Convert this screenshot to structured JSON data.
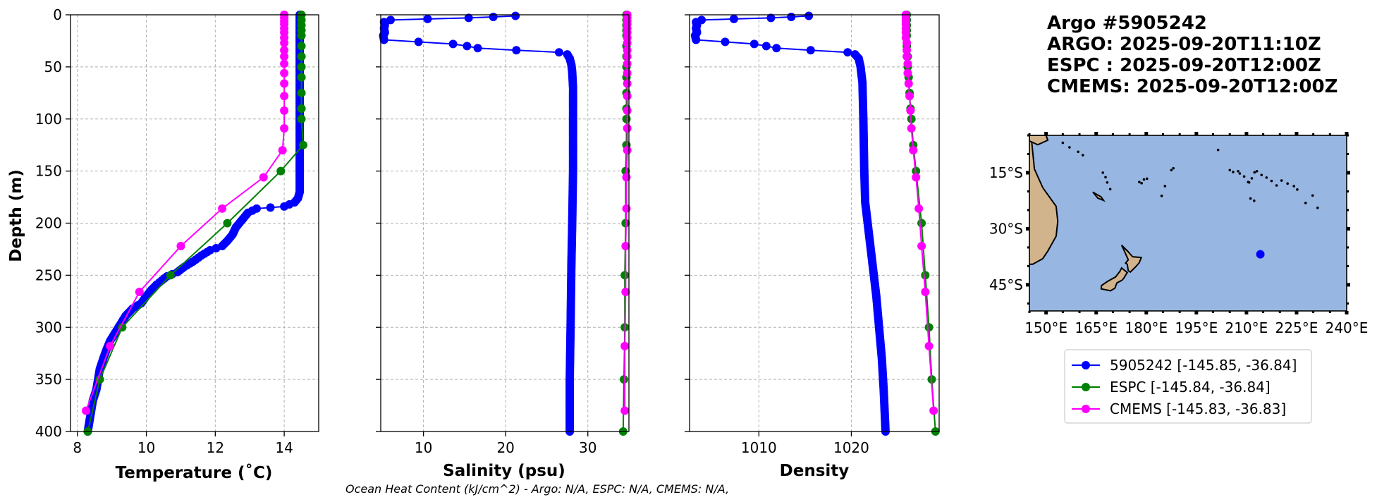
{
  "chart_data": [
    {
      "type": "line",
      "panel": "temperature",
      "xlabel": "Temperature (˚C)",
      "ylabel": "Depth (m)",
      "xlim": [
        7.8,
        15.0
      ],
      "ylim": [
        400,
        0
      ],
      "xticks": [
        8,
        10,
        12,
        14
      ],
      "yticks": [
        0,
        50,
        100,
        150,
        200,
        250,
        300,
        350,
        400
      ],
      "grid": true,
      "series": [
        {
          "name": "5905242",
          "color": "#0000ff",
          "marker": "dense",
          "points": [
            [
              14.45,
              0
            ],
            [
              14.45,
              25
            ],
            [
              14.45,
              50
            ],
            [
              14.45,
              75
            ],
            [
              14.45,
              100
            ],
            [
              14.45,
              125
            ],
            [
              14.45,
              150
            ],
            [
              14.45,
              170
            ],
            [
              14.4,
              176
            ],
            [
              14.3,
              180
            ],
            [
              14.0,
              184
            ],
            [
              13.6,
              185
            ],
            [
              13.2,
              186
            ],
            [
              12.95,
              190
            ],
            [
              12.8,
              196
            ],
            [
              12.6,
              204
            ],
            [
              12.5,
              211
            ],
            [
              12.35,
              217
            ],
            [
              12.2,
              222
            ],
            [
              11.85,
              226
            ],
            [
              11.6,
              231
            ],
            [
              11.35,
              237
            ],
            [
              11.1,
              242
            ],
            [
              10.9,
              247
            ],
            [
              10.6,
              251
            ],
            [
              10.3,
              259
            ],
            [
              10.15,
              264
            ],
            [
              10.0,
              270
            ],
            [
              9.85,
              277
            ],
            [
              9.6,
              282
            ],
            [
              9.4,
              289
            ],
            [
              9.25,
              297
            ],
            [
              9.1,
              305
            ],
            [
              8.95,
              313
            ],
            [
              8.85,
              321
            ],
            [
              8.75,
              330
            ],
            [
              8.65,
              340
            ],
            [
              8.6,
              350
            ],
            [
              8.55,
              360
            ],
            [
              8.45,
              370
            ],
            [
              8.4,
              380
            ],
            [
              8.35,
              390
            ],
            [
              8.3,
              400
            ]
          ]
        },
        {
          "name": "ESPC",
          "color": "#008000",
          "marker": "dot",
          "points": [
            [
              14.5,
              0
            ],
            [
              14.5,
              5
            ],
            [
              14.5,
              10
            ],
            [
              14.5,
              15
            ],
            [
              14.5,
              20
            ],
            [
              14.5,
              30
            ],
            [
              14.5,
              40
            ],
            [
              14.5,
              50
            ],
            [
              14.5,
              60
            ],
            [
              14.5,
              75
            ],
            [
              14.5,
              90
            ],
            [
              14.5,
              100
            ],
            [
              14.55,
              125
            ],
            [
              13.9,
              150
            ],
            [
              12.35,
              200
            ],
            [
              10.7,
              250
            ],
            [
              9.3,
              300
            ],
            [
              8.65,
              350
            ],
            [
              8.3,
              400
            ]
          ]
        },
        {
          "name": "CMEMS",
          "color": "#ff00ff",
          "marker": "dot",
          "points": [
            [
              14.0,
              0
            ],
            [
              14.0,
              3
            ],
            [
              14.0,
              6
            ],
            [
              14.0,
              9
            ],
            [
              14.0,
              13
            ],
            [
              14.0,
              17
            ],
            [
              14.0,
              22
            ],
            [
              14.0,
              27
            ],
            [
              14.0,
              34
            ],
            [
              14.0,
              40
            ],
            [
              14.0,
              47
            ],
            [
              14.0,
              56
            ],
            [
              14.0,
              66
            ],
            [
              14.0,
              78
            ],
            [
              14.0,
              92
            ],
            [
              14.0,
              109
            ],
            [
              13.95,
              130
            ],
            [
              13.4,
              156
            ],
            [
              12.2,
              186
            ],
            [
              11.0,
              222
            ],
            [
              9.8,
              266
            ],
            [
              8.95,
              318
            ],
            [
              8.25,
              380
            ]
          ]
        }
      ]
    },
    {
      "type": "line",
      "panel": "salinity",
      "xlabel": "Salinity (psu)",
      "xlim": [
        4.8,
        35.0
      ],
      "ylim": [
        400,
        0
      ],
      "xticks": [
        10,
        20,
        30
      ],
      "grid": true,
      "series": [
        {
          "name": "5905242",
          "color": "#0000ff",
          "marker": "dense",
          "points": [
            [
              21.2,
              1
            ],
            [
              18.5,
              2
            ],
            [
              15.5,
              3
            ],
            [
              10.5,
              4
            ],
            [
              6.0,
              5
            ],
            [
              5.2,
              7
            ],
            [
              5.3,
              10
            ],
            [
              5.2,
              13
            ],
            [
              5.3,
              17
            ],
            [
              5.1,
              20
            ],
            [
              5.2,
              24
            ],
            [
              13.6,
              28
            ],
            [
              15.3,
              30
            ],
            [
              16.6,
              32
            ],
            [
              21.3,
              34
            ],
            [
              26.5,
              36
            ],
            [
              27.5,
              38
            ],
            [
              27.8,
              42
            ],
            [
              28.0,
              48
            ],
            [
              28.1,
              55
            ],
            [
              28.2,
              70
            ],
            [
              28.2,
              100
            ],
            [
              28.2,
              150
            ],
            [
              28.1,
              200
            ],
            [
              28.0,
              240
            ],
            [
              27.9,
              300
            ],
            [
              27.8,
              350
            ],
            [
              27.8,
              400
            ]
          ]
        },
        {
          "name": "ESPC",
          "color": "#008000",
          "marker": "dot",
          "points": [
            [
              34.7,
              0
            ],
            [
              34.7,
              5
            ],
            [
              34.7,
              10
            ],
            [
              34.7,
              15
            ],
            [
              34.7,
              20
            ],
            [
              34.7,
              30
            ],
            [
              34.7,
              40
            ],
            [
              34.7,
              50
            ],
            [
              34.7,
              60
            ],
            [
              34.7,
              75
            ],
            [
              34.7,
              90
            ],
            [
              34.7,
              100
            ],
            [
              34.7,
              125
            ],
            [
              34.6,
              150
            ],
            [
              34.6,
              200
            ],
            [
              34.5,
              250
            ],
            [
              34.5,
              300
            ],
            [
              34.4,
              350
            ],
            [
              34.3,
              400
            ]
          ]
        },
        {
          "name": "CMEMS",
          "color": "#ff00ff",
          "marker": "dot",
          "points": [
            [
              34.8,
              0
            ],
            [
              34.8,
              3
            ],
            [
              34.8,
              6
            ],
            [
              34.8,
              9
            ],
            [
              34.8,
              13
            ],
            [
              34.8,
              17
            ],
            [
              34.8,
              22
            ],
            [
              34.8,
              27
            ],
            [
              34.8,
              34
            ],
            [
              34.8,
              40
            ],
            [
              34.8,
              47
            ],
            [
              34.8,
              56
            ],
            [
              34.8,
              66
            ],
            [
              34.8,
              78
            ],
            [
              34.8,
              92
            ],
            [
              34.8,
              109
            ],
            [
              34.8,
              130
            ],
            [
              34.7,
              156
            ],
            [
              34.7,
              186
            ],
            [
              34.6,
              222
            ],
            [
              34.6,
              266
            ],
            [
              34.5,
              318
            ],
            [
              34.5,
              380
            ]
          ]
        }
      ]
    },
    {
      "type": "line",
      "panel": "density",
      "xlabel": "Density",
      "xlim": [
        1002.5,
        1029.5
      ],
      "ylim": [
        400,
        0
      ],
      "xticks": [
        1010,
        1020
      ],
      "grid": true,
      "series": [
        {
          "name": "5905242",
          "color": "#0000ff",
          "marker": "dense",
          "points": [
            [
              1015.4,
              1
            ],
            [
              1013.5,
              2
            ],
            [
              1011.3,
              3
            ],
            [
              1007.3,
              4
            ],
            [
              1003.8,
              5
            ],
            [
              1003.2,
              7
            ],
            [
              1003.3,
              10
            ],
            [
              1003.2,
              13
            ],
            [
              1003.3,
              17
            ],
            [
              1003.1,
              20
            ],
            [
              1003.2,
              24
            ],
            [
              1009.5,
              28
            ],
            [
              1010.8,
              30
            ],
            [
              1011.9,
              32
            ],
            [
              1015.6,
              34
            ],
            [
              1019.6,
              36
            ],
            [
              1020.4,
              38
            ],
            [
              1020.8,
              42
            ],
            [
              1021.0,
              50
            ],
            [
              1021.2,
              65
            ],
            [
              1021.3,
              100
            ],
            [
              1021.4,
              150
            ],
            [
              1021.5,
              180
            ],
            [
              1021.9,
              210
            ],
            [
              1022.3,
              240
            ],
            [
              1022.7,
              270
            ],
            [
              1023.0,
              300
            ],
            [
              1023.3,
              330
            ],
            [
              1023.5,
              360
            ],
            [
              1023.7,
              400
            ]
          ]
        },
        {
          "name": "ESPC",
          "color": "#008000",
          "marker": "dot",
          "points": [
            [
              1026.0,
              0
            ],
            [
              1026.0,
              5
            ],
            [
              1026.0,
              10
            ],
            [
              1026.0,
              15
            ],
            [
              1026.0,
              20
            ],
            [
              1026.0,
              30
            ],
            [
              1026.1,
              40
            ],
            [
              1026.1,
              50
            ],
            [
              1026.2,
              60
            ],
            [
              1026.3,
              75
            ],
            [
              1026.4,
              90
            ],
            [
              1026.5,
              100
            ],
            [
              1026.7,
              125
            ],
            [
              1027.0,
              150
            ],
            [
              1027.6,
              200
            ],
            [
              1028.0,
              250
            ],
            [
              1028.4,
              300
            ],
            [
              1028.7,
              350
            ],
            [
              1029.1,
              400
            ]
          ]
        },
        {
          "name": "CMEMS",
          "color": "#ff00ff",
          "marker": "dot",
          "points": [
            [
              1025.9,
              0
            ],
            [
              1025.9,
              3
            ],
            [
              1025.9,
              6
            ],
            [
              1025.9,
              9
            ],
            [
              1025.9,
              13
            ],
            [
              1025.9,
              17
            ],
            [
              1025.9,
              22
            ],
            [
              1026.0,
              27
            ],
            [
              1026.0,
              34
            ],
            [
              1026.0,
              40
            ],
            [
              1026.1,
              47
            ],
            [
              1026.1,
              56
            ],
            [
              1026.2,
              66
            ],
            [
              1026.3,
              78
            ],
            [
              1026.4,
              92
            ],
            [
              1026.5,
              109
            ],
            [
              1026.7,
              130
            ],
            [
              1027.0,
              156
            ],
            [
              1027.3,
              186
            ],
            [
              1027.6,
              222
            ],
            [
              1028.0,
              266
            ],
            [
              1028.4,
              318
            ],
            [
              1028.9,
              380
            ]
          ]
        }
      ]
    },
    {
      "type": "map",
      "panel": "location",
      "lon_range": [
        145,
        240
      ],
      "lat_range": [
        -52,
        -5
      ],
      "lon_ticks": [
        "150°E",
        "165°E",
        "180°E",
        "195°E",
        "210°E",
        "225°E",
        "240°E"
      ],
      "lon_tick_values": [
        150,
        165,
        180,
        195,
        210,
        225,
        240
      ],
      "lat_ticks": [
        "15°S",
        "30°S",
        "45°S"
      ],
      "lat_tick_values": [
        -15,
        -30,
        -45
      ],
      "float_position": {
        "lon": 214.15,
        "lat": -36.84
      },
      "ocean_color": "#97b6e2",
      "land_color": "#d2b48c"
    }
  ],
  "title_lines": [
    "Argo #5905242",
    "ARGO: 2025-09-20T11:10Z",
    "ESPC : 2025-09-20T12:00Z",
    "CMEMS: 2025-09-20T12:00Z"
  ],
  "legend": [
    {
      "label": "5905242 [-145.85, -36.84]",
      "color": "#0000ff"
    },
    {
      "label": "ESPC [-145.84, -36.84]",
      "color": "#008000"
    },
    {
      "label": "CMEMS [-145.83, -36.83]",
      "color": "#ff00ff"
    }
  ],
  "footer": "Ocean Heat Content (kJ/cm^2) - Argo: N/A,  ESPC: N/A,  CMEMS: N/A,"
}
